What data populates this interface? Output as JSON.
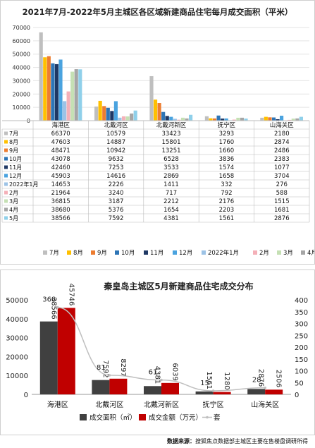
{
  "source": {
    "label": "数据来源：",
    "text": "搜狐焦点数据部主城区主要在售楼盘调研所得"
  },
  "chart_data": [
    {
      "type": "bar",
      "title": "2021年7月-2022年5月主城区各区域新建商品住宅每月成交面积（平米）",
      "categories": [
        "海港区",
        "北戴河区",
        "北戴河新区",
        "抚宁区",
        "山海关区"
      ],
      "ylim": [
        0,
        70000
      ],
      "yticks": [
        0,
        10000,
        20000,
        30000,
        40000,
        50000,
        60000,
        70000
      ],
      "grid": true,
      "legend_position": "bottom",
      "series": [
        {
          "name": "7月",
          "color": "#bfbfbf",
          "values": [
            66370,
            10579,
            33423,
            3293,
            2180
          ]
        },
        {
          "name": "8月",
          "color": "#ffc000",
          "values": [
            47603,
            14887,
            15801,
            1760,
            2874
          ]
        },
        {
          "name": "9月",
          "color": "#ed7d31",
          "values": [
            48471,
            10942,
            13251,
            1660,
            2486
          ]
        },
        {
          "name": "10月",
          "color": "#2e75b6",
          "values": [
            43078,
            9632,
            6528,
            3836,
            2383
          ]
        },
        {
          "name": "11月",
          "color": "#1f3864",
          "values": [
            42460,
            7253,
            3533,
            1574,
            1077
          ]
        },
        {
          "name": "12月",
          "color": "#4aa3df",
          "values": [
            45903,
            14616,
            2869,
            1658,
            3704
          ]
        },
        {
          "name": "2022年1月",
          "color": "#9dc3e6",
          "values": [
            14653,
            2226,
            1411,
            332,
            276
          ]
        },
        {
          "name": "2月",
          "color": "#f4b0b8",
          "values": [
            21964,
            3240,
            717,
            792,
            588
          ]
        },
        {
          "name": "3月",
          "color": "#c5e0b4",
          "values": [
            36815,
            3187,
            2212,
            2176,
            1515
          ]
        },
        {
          "name": "4月",
          "color": "#a6a6a6",
          "values": [
            38680,
            5376,
            1654,
            2203,
            1681
          ]
        },
        {
          "name": "5月",
          "color": "#8fd0ea",
          "values": [
            38566,
            7592,
            4381,
            1561,
            2876
          ]
        }
      ]
    },
    {
      "type": "bar",
      "title": "秦皇岛主城区5月新建商品住宅成交分布",
      "categories": [
        "海港区",
        "北戴河区",
        "北戴河新区",
        "抚宁区",
        "山海关区"
      ],
      "ylim": [
        0,
        50000
      ],
      "yticks": [
        0,
        10000,
        20000,
        30000,
        40000,
        50000
      ],
      "y2lim": [
        0,
        400
      ],
      "y2ticks": [
        0,
        50,
        100,
        150,
        200,
        250,
        300,
        350,
        400
      ],
      "legend_position": "bottom",
      "series": [
        {
          "name": "成交面积（㎡）",
          "kind": "bar",
          "color": "#404040",
          "values": [
            38566,
            7592,
            4381,
            1561,
            2876
          ]
        },
        {
          "name": "成交金额（万元）",
          "kind": "bar",
          "color": "#c00000",
          "values": [
            45746,
            8297,
            6039,
            1280,
            2506
          ]
        },
        {
          "name": "套",
          "kind": "line",
          "axis": "right",
          "color": "#bfbfbf",
          "values": [
            368,
            81,
            61,
            15,
            28
          ]
        }
      ]
    }
  ]
}
